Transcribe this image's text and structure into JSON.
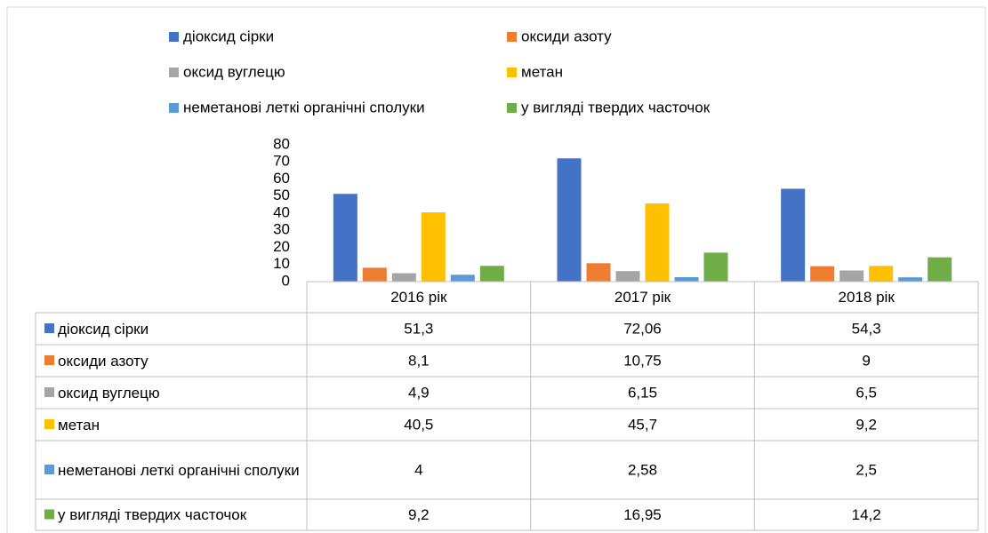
{
  "chart_data": {
    "type": "bar",
    "categories": [
      "2016 рік",
      "2017 рік",
      "2018 рік"
    ],
    "series": [
      {
        "name": "діоксид сірки",
        "color": "#4472c4",
        "values": [
          51.3,
          72.06,
          54.3
        ],
        "value_labels": [
          "51,3",
          "72,06",
          "54,3"
        ]
      },
      {
        "name": "оксиди азоту",
        "color": "#ed7d31",
        "values": [
          8.1,
          10.75,
          9
        ],
        "value_labels": [
          "8,1",
          "10,75",
          "9"
        ]
      },
      {
        "name": "оксид вуглецю",
        "color": "#a5a5a5",
        "values": [
          4.9,
          6.15,
          6.5
        ],
        "value_labels": [
          "4,9",
          "6,15",
          "6,5"
        ]
      },
      {
        "name": "метан",
        "color": "#ffc000",
        "values": [
          40.5,
          45.7,
          9.2
        ],
        "value_labels": [
          "40,5",
          "45,7",
          "9,2"
        ]
      },
      {
        "name": "неметанові леткі органічні сполуки",
        "color": "#5b9bd5",
        "values": [
          4,
          2.58,
          2.5
        ],
        "value_labels": [
          "4",
          "2,58",
          "2,5"
        ]
      },
      {
        "name": "у вигляді твердих часточок",
        "color": "#70ad47",
        "values": [
          9.2,
          16.95,
          14.2
        ],
        "value_labels": [
          "9,2",
          "16,95",
          "14,2"
        ]
      }
    ],
    "ylim": [
      0,
      80
    ],
    "yticks": [
      0,
      10,
      20,
      30,
      40,
      50,
      60,
      70,
      80
    ],
    "grid": false,
    "legend": "top"
  }
}
